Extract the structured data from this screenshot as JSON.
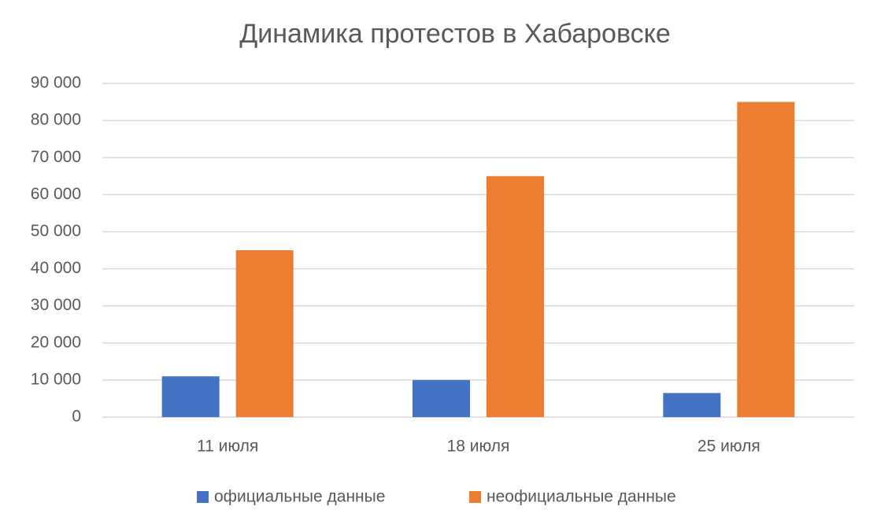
{
  "chart_data": {
    "type": "bar",
    "title": "Динамика протестов в Хабаровске",
    "categories": [
      "11 июля",
      "18 июля",
      "25 июля"
    ],
    "series": [
      {
        "name": "официальные данные",
        "color": "#4472c4",
        "values": [
          11000,
          10000,
          6500
        ]
      },
      {
        "name": "неофициальные данные",
        "color": "#ed7d31",
        "values": [
          45000,
          65000,
          85000
        ]
      }
    ],
    "ylim": [
      0,
      90000
    ],
    "yticks": [
      0,
      {
        "value": 10000,
        "label": "10 000"
      },
      {
        "value": 20000,
        "label": "20 000"
      },
      {
        "value": 30000,
        "label": "30 000"
      },
      {
        "value": 40000,
        "label": "40 000"
      },
      {
        "value": 50000,
        "label": "50 000"
      },
      {
        "value": 60000,
        "label": "60 000"
      },
      {
        "value": 70000,
        "label": "70 000"
      },
      {
        "value": 80000,
        "label": "80 000"
      },
      {
        "value": 90000,
        "label": "90 000"
      }
    ],
    "grid": true,
    "legend": "bottom"
  }
}
